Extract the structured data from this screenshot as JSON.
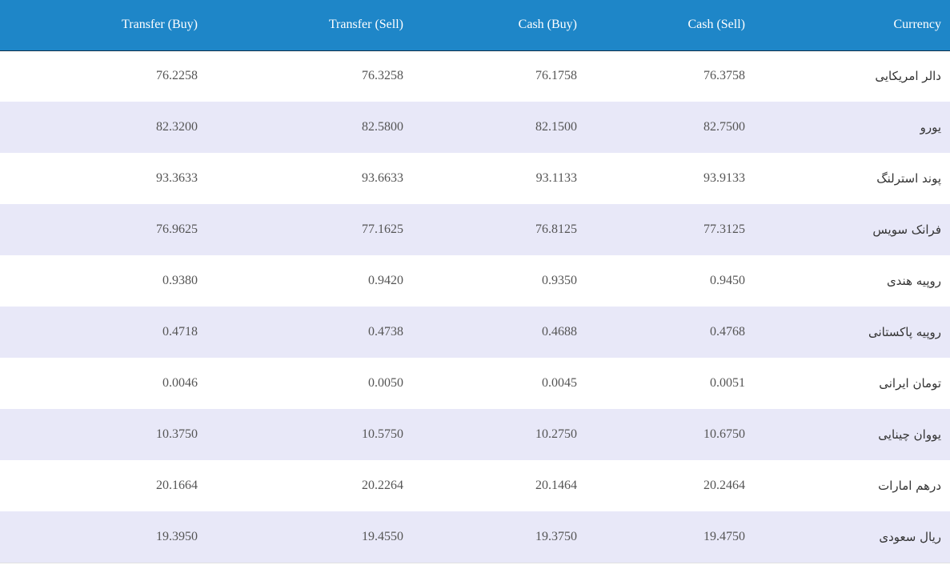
{
  "table": {
    "headers": {
      "transfer_buy": "Transfer (Buy)",
      "transfer_sell": "Transfer (Sell)",
      "cash_buy": "Cash (Buy)",
      "cash_sell": "Cash (Sell)",
      "currency": "Currency"
    },
    "rows": [
      {
        "transfer_buy": "76.2258",
        "transfer_sell": "76.3258",
        "cash_buy": "76.1758",
        "cash_sell": "76.3758",
        "currency": "دالر امریکایی"
      },
      {
        "transfer_buy": "82.3200",
        "transfer_sell": "82.5800",
        "cash_buy": "82.1500",
        "cash_sell": "82.7500",
        "currency": "یورو"
      },
      {
        "transfer_buy": "93.3633",
        "transfer_sell": "93.6633",
        "cash_buy": "93.1133",
        "cash_sell": "93.9133",
        "currency": "پوند استرلنگ"
      },
      {
        "transfer_buy": "76.9625",
        "transfer_sell": "77.1625",
        "cash_buy": "76.8125",
        "cash_sell": "77.3125",
        "currency": "فرانک سویس"
      },
      {
        "transfer_buy": "0.9380",
        "transfer_sell": "0.9420",
        "cash_buy": "0.9350",
        "cash_sell": "0.9450",
        "currency": "روپیه هندی"
      },
      {
        "transfer_buy": "0.4718",
        "transfer_sell": "0.4738",
        "cash_buy": "0.4688",
        "cash_sell": "0.4768",
        "currency": "روپیه پاکستانی"
      },
      {
        "transfer_buy": "0.0046",
        "transfer_sell": "0.0050",
        "cash_buy": "0.0045",
        "cash_sell": "0.0051",
        "currency": "تومان ایرانی"
      },
      {
        "transfer_buy": "10.3750",
        "transfer_sell": "10.5750",
        "cash_buy": "10.2750",
        "cash_sell": "10.6750",
        "currency": "یووان چینایی"
      },
      {
        "transfer_buy": "20.1664",
        "transfer_sell": "20.2264",
        "cash_buy": "20.1464",
        "cash_sell": "20.2464",
        "currency": "درهم امارات"
      },
      {
        "transfer_buy": "19.3950",
        "transfer_sell": "19.4550",
        "cash_buy": "19.3750",
        "cash_sell": "19.4750",
        "currency": "ریال سعودی"
      }
    ]
  },
  "colors": {
    "header_bg": "#1e86c8",
    "stripe_bg": "#e8e8f8"
  }
}
